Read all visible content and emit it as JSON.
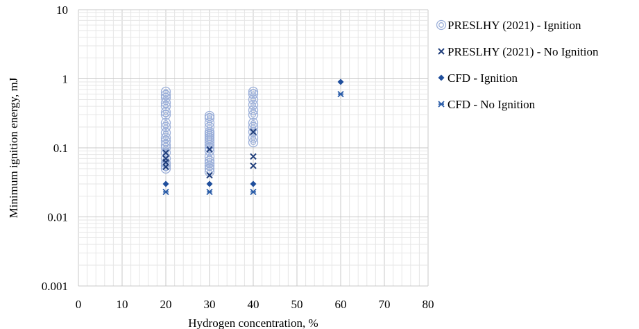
{
  "colors": {
    "ignition_exp": "#9BAFD9",
    "no_ignition_exp": "#1F3D7A",
    "cfd_ignition": "#1F4E9C",
    "cfd_no_ignition": "#2A5CA8",
    "major_grid": "#C8C8C8",
    "minor_grid": "#E6E6E6"
  },
  "chart_data": {
    "type": "scatter",
    "xlabel": "Hydrogen concentration, %",
    "ylabel": "Minimum ignition energy, mJ",
    "xlim": [
      0,
      80
    ],
    "ylim": [
      0.001,
      10
    ],
    "yscale": "log",
    "xticks": [
      "0",
      "10",
      "20",
      "30",
      "40",
      "50",
      "60",
      "70",
      "80"
    ],
    "yticks": [
      "0.001",
      "0.01",
      "0.1",
      "1",
      "10"
    ],
    "grid": true,
    "legend_position": "right",
    "series": [
      {
        "name": "PRESLHY (2021) - Ignition",
        "marker": "double-circle",
        "points": [
          [
            20,
            0.05
          ],
          [
            20,
            0.055
          ],
          [
            20,
            0.06
          ],
          [
            20,
            0.07
          ],
          [
            20,
            0.085
          ],
          [
            20,
            0.1
          ],
          [
            20,
            0.11
          ],
          [
            20,
            0.125
          ],
          [
            20,
            0.14
          ],
          [
            20,
            0.165
          ],
          [
            20,
            0.2
          ],
          [
            20,
            0.23
          ],
          [
            20,
            0.3
          ],
          [
            20,
            0.33
          ],
          [
            20,
            0.4
          ],
          [
            20,
            0.45
          ],
          [
            20,
            0.53
          ],
          [
            20,
            0.58
          ],
          [
            20,
            0.65
          ],
          [
            30,
            0.045
          ],
          [
            30,
            0.05
          ],
          [
            30,
            0.055
          ],
          [
            30,
            0.06
          ],
          [
            30,
            0.065
          ],
          [
            30,
            0.075
          ],
          [
            30,
            0.09
          ],
          [
            30,
            0.1
          ],
          [
            30,
            0.11
          ],
          [
            30,
            0.12
          ],
          [
            30,
            0.13
          ],
          [
            30,
            0.14
          ],
          [
            30,
            0.15
          ],
          [
            30,
            0.16
          ],
          [
            30,
            0.17
          ],
          [
            30,
            0.2
          ],
          [
            30,
            0.23
          ],
          [
            30,
            0.27
          ],
          [
            30,
            0.29
          ],
          [
            40,
            0.12
          ],
          [
            40,
            0.14
          ],
          [
            40,
            0.17
          ],
          [
            40,
            0.2
          ],
          [
            40,
            0.23
          ],
          [
            40,
            0.3
          ],
          [
            40,
            0.35
          ],
          [
            40,
            0.42
          ],
          [
            40,
            0.5
          ],
          [
            40,
            0.6
          ],
          [
            40,
            0.65
          ]
        ]
      },
      {
        "name": "PRESLHY (2021) - No Ignition",
        "marker": "x",
        "points": [
          [
            20,
            0.053
          ],
          [
            20,
            0.062
          ],
          [
            20,
            0.07
          ],
          [
            20,
            0.085
          ],
          [
            30,
            0.04
          ],
          [
            30,
            0.095
          ],
          [
            40,
            0.055
          ],
          [
            40,
            0.075
          ],
          [
            40,
            0.17
          ]
        ]
      },
      {
        "name": "CFD - Ignition",
        "marker": "diamond",
        "points": [
          [
            20,
            0.03
          ],
          [
            30,
            0.03
          ],
          [
            40,
            0.03
          ],
          [
            60,
            0.9
          ]
        ]
      },
      {
        "name": "CFD - No Ignition",
        "marker": "asterisk",
        "points": [
          [
            20,
            0.023
          ],
          [
            30,
            0.023
          ],
          [
            40,
            0.023
          ],
          [
            60,
            0.6
          ]
        ]
      }
    ]
  }
}
